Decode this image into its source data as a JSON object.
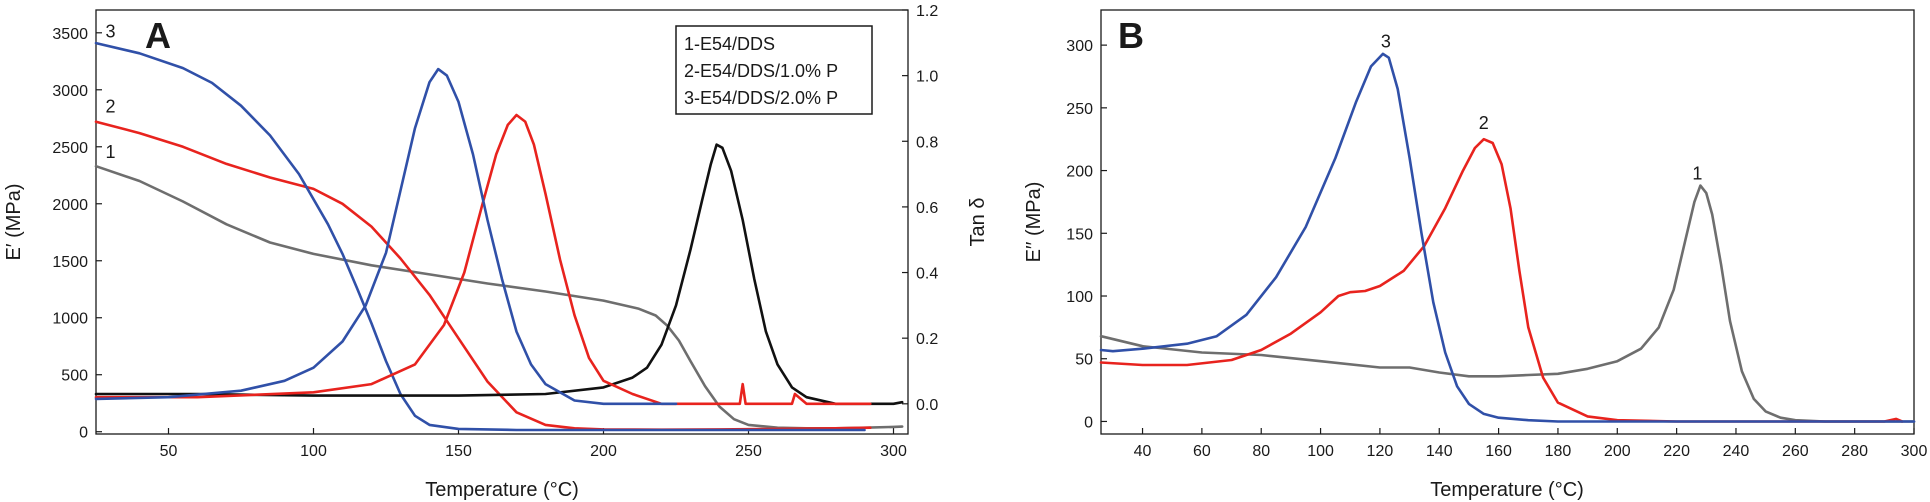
{
  "figure": {
    "panel_a_label": "A",
    "panel_b_label": "B"
  },
  "chart_data": [
    {
      "type": "line",
      "panel": "A",
      "title": "",
      "xlabel": "Temperature (°C)",
      "ylabel": "E′ (MPa)",
      "y2label": "Tan δ",
      "xlim": [
        25,
        305
      ],
      "ylim": [
        -20,
        3700
      ],
      "y2lim": [
        -0.092,
        1.2
      ],
      "xticks": [
        50,
        100,
        150,
        200,
        250,
        300
      ],
      "yticks": [
        0,
        500,
        1000,
        1500,
        2000,
        2500,
        3000,
        3500
      ],
      "y2ticks": [
        0.0,
        0.2,
        0.4,
        0.6,
        0.8,
        1.0,
        1.2
      ],
      "y2tick_labels": [
        "0.0",
        "0.2",
        "0.4",
        "0.6",
        "0.8",
        "1.0",
        "1.2"
      ],
      "grid": false,
      "legend": {
        "position": "top-right",
        "entries": [
          "1-E54/DDS",
          "2-E54/DDS/1.0% P",
          "3-E54/DDS/2.0% P"
        ]
      },
      "annotations": [
        {
          "text": "1",
          "x": 30,
          "y": 2400
        },
        {
          "text": "2",
          "x": 30,
          "y": 2800
        },
        {
          "text": "3",
          "x": 30,
          "y": 3460
        }
      ],
      "series": [
        {
          "label": "1",
          "axis": "left",
          "color": "#6e6e6e",
          "x": [
            25,
            40,
            55,
            70,
            85,
            100,
            120,
            140,
            160,
            180,
            200,
            212,
            218,
            222,
            226,
            230,
            235,
            240,
            245,
            250,
            260,
            270,
            280,
            290,
            300,
            303
          ],
          "y": [
            2330,
            2200,
            2020,
            1820,
            1660,
            1560,
            1460,
            1380,
            1300,
            1230,
            1150,
            1080,
            1020,
            930,
            800,
            620,
            400,
            220,
            110,
            60,
            35,
            30,
            30,
            35,
            42,
            45
          ]
        },
        {
          "label": "2",
          "axis": "left",
          "color": "#e8231e",
          "x": [
            25,
            40,
            55,
            70,
            85,
            100,
            110,
            120,
            130,
            140,
            150,
            160,
            170,
            180,
            190,
            200,
            220,
            240,
            260,
            280,
            292
          ],
          "y": [
            2720,
            2620,
            2500,
            2350,
            2230,
            2130,
            2000,
            1800,
            1520,
            1200,
            820,
            440,
            170,
            60,
            30,
            20,
            18,
            20,
            25,
            30,
            35
          ]
        },
        {
          "label": "3",
          "axis": "left",
          "color": "#3050a8",
          "x": [
            25,
            40,
            55,
            65,
            75,
            85,
            95,
            105,
            110,
            115,
            120,
            125,
            130,
            135,
            140,
            150,
            170,
            200,
            230,
            260,
            290
          ],
          "y": [
            3410,
            3320,
            3190,
            3060,
            2860,
            2600,
            2260,
            1820,
            1560,
            1260,
            950,
            620,
            330,
            140,
            60,
            25,
            15,
            15,
            15,
            15,
            15
          ]
        },
        {
          "label": "1",
          "axis": "right",
          "color": "#111111",
          "x": [
            25,
            60,
            100,
            150,
            180,
            200,
            210,
            215,
            220,
            225,
            230,
            234,
            237,
            239,
            241,
            244,
            248,
            252,
            256,
            260,
            265,
            270,
            280,
            290,
            300,
            303
          ],
          "y": [
            0.03,
            0.03,
            0.025,
            0.025,
            0.03,
            0.05,
            0.08,
            0.11,
            0.18,
            0.3,
            0.47,
            0.62,
            0.73,
            0.79,
            0.78,
            0.71,
            0.56,
            0.38,
            0.22,
            0.12,
            0.05,
            0.02,
            0.0,
            0.0,
            0.0,
            0.005
          ]
        },
        {
          "label": "2",
          "axis": "right",
          "color": "#e8231e",
          "x": [
            25,
            60,
            100,
            120,
            135,
            145,
            152,
            158,
            163,
            167,
            170,
            173,
            176,
            180,
            185,
            190,
            195,
            200,
            210,
            220,
            230,
            240,
            247,
            248,
            249,
            255,
            265,
            266,
            270,
            280,
            292
          ],
          "y": [
            0.02,
            0.02,
            0.035,
            0.06,
            0.12,
            0.24,
            0.4,
            0.6,
            0.76,
            0.85,
            0.88,
            0.86,
            0.79,
            0.64,
            0.44,
            0.27,
            0.14,
            0.07,
            0.03,
            0.0,
            0.0,
            0.0,
            0.0,
            0.06,
            0.0,
            0.0,
            0.0,
            0.03,
            0.0,
            0.0,
            0.0
          ]
        },
        {
          "label": "3",
          "axis": "right",
          "color": "#3050a8",
          "x": [
            25,
            50,
            75,
            90,
            100,
            110,
            118,
            125,
            130,
            135,
            140,
            143,
            146,
            150,
            155,
            160,
            165,
            170,
            175,
            180,
            190,
            200,
            210,
            225
          ],
          "y": [
            0.015,
            0.02,
            0.04,
            0.07,
            0.11,
            0.19,
            0.3,
            0.46,
            0.65,
            0.84,
            0.98,
            1.02,
            1.0,
            0.92,
            0.76,
            0.56,
            0.38,
            0.22,
            0.12,
            0.06,
            0.01,
            0.0,
            0.0,
            0.0
          ]
        }
      ]
    },
    {
      "type": "line",
      "panel": "B",
      "title": "",
      "xlabel": "Temperature (°C)",
      "ylabel": "E′′ (MPa)",
      "xlim": [
        26,
        300
      ],
      "ylim": [
        -10,
        328
      ],
      "xticks": [
        40,
        60,
        80,
        100,
        120,
        140,
        160,
        180,
        200,
        220,
        240,
        260,
        280,
        300
      ],
      "yticks": [
        0,
        50,
        100,
        150,
        200,
        250,
        300
      ],
      "grid": false,
      "annotations": [
        {
          "text": "1",
          "x": 227,
          "y": 193
        },
        {
          "text": "2",
          "x": 155,
          "y": 233
        },
        {
          "text": "3",
          "x": 122,
          "y": 298
        }
      ],
      "series": [
        {
          "label": "1",
          "color": "#6e6e6e",
          "x": [
            26,
            40,
            60,
            80,
            100,
            120,
            130,
            140,
            150,
            160,
            170,
            180,
            190,
            200,
            208,
            214,
            219,
            223,
            226,
            228,
            230,
            232,
            235,
            238,
            242,
            246,
            250,
            255,
            260,
            270,
            280,
            290,
            300
          ],
          "y": [
            68,
            60,
            55,
            53,
            48,
            43,
            43,
            39,
            36,
            36,
            37,
            38,
            42,
            48,
            58,
            75,
            105,
            145,
            175,
            188,
            182,
            165,
            125,
            80,
            40,
            18,
            8,
            3,
            1,
            0,
            0,
            0,
            0
          ]
        },
        {
          "label": "2",
          "color": "#e8231e",
          "x": [
            26,
            40,
            55,
            70,
            80,
            90,
            100,
            106,
            110,
            115,
            120,
            128,
            135,
            142,
            148,
            152,
            155,
            158,
            161,
            164,
            167,
            170,
            175,
            180,
            190,
            200,
            220,
            250,
            290,
            294,
            296
          ],
          "y": [
            47,
            45,
            45,
            49,
            57,
            70,
            87,
            100,
            103,
            104,
            108,
            120,
            140,
            170,
            200,
            218,
            225,
            222,
            205,
            170,
            120,
            75,
            35,
            15,
            4,
            1,
            0,
            0,
            0,
            2,
            0
          ]
        },
        {
          "label": "3",
          "color": "#3050a8",
          "x": [
            26,
            30,
            40,
            55,
            65,
            75,
            85,
            95,
            105,
            112,
            117,
            121,
            123,
            126,
            130,
            134,
            138,
            142,
            146,
            150,
            155,
            160,
            170,
            180,
            200,
            230,
            260,
            300
          ],
          "y": [
            57,
            56,
            58,
            62,
            68,
            85,
            115,
            155,
            210,
            255,
            283,
            293,
            290,
            265,
            210,
            150,
            95,
            55,
            28,
            14,
            6,
            3,
            1,
            0,
            0,
            0,
            0,
            0
          ]
        }
      ]
    }
  ]
}
